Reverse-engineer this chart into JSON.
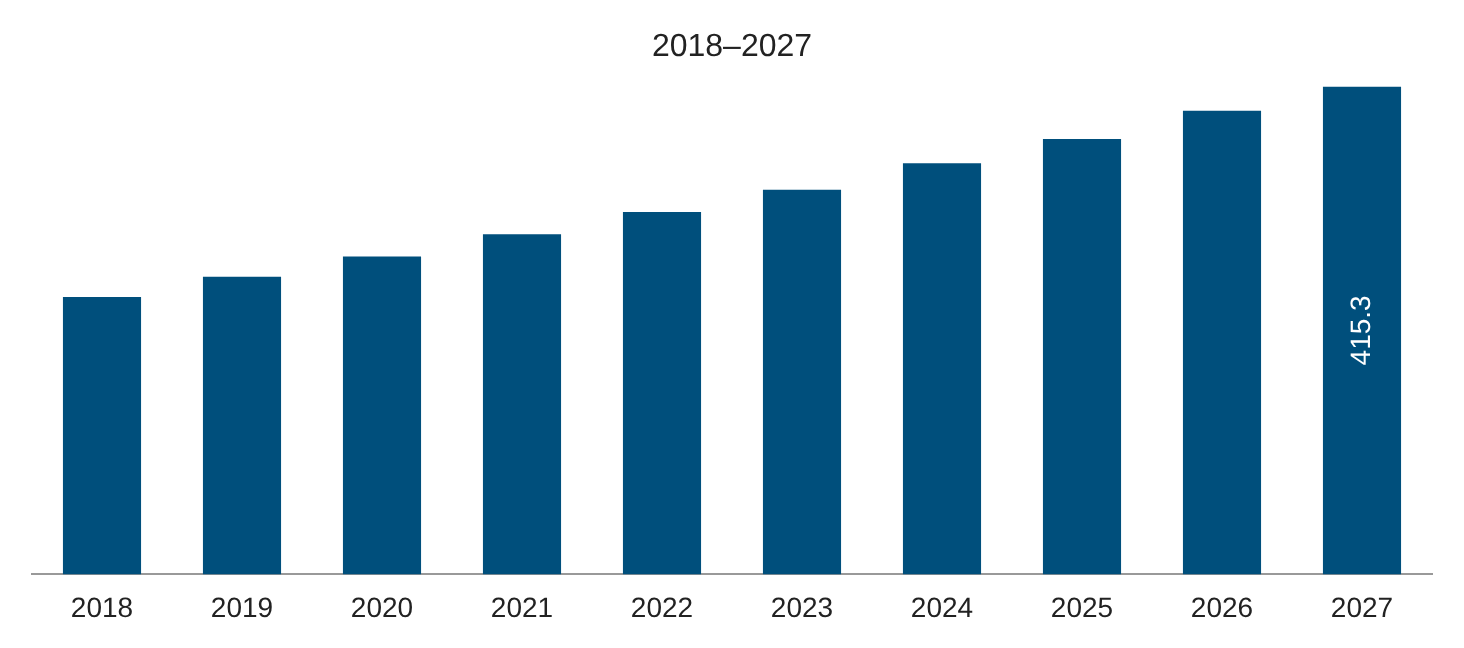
{
  "chart_data": {
    "type": "bar",
    "title": "2018–2027",
    "categories": [
      "2018",
      "2019",
      "2020",
      "2021",
      "2022",
      "2023",
      "2024",
      "2025",
      "2026",
      "2027"
    ],
    "values": [
      236.1,
      253.3,
      270.5,
      289.5,
      308.5,
      327.4,
      349.8,
      370.5,
      394.6,
      415.3
    ],
    "value_labels": [
      null,
      null,
      null,
      null,
      null,
      null,
      null,
      null,
      null,
      "415.3"
    ],
    "color": "#004f7c",
    "ylim": [
      0,
      415.3
    ],
    "tick_labels": "x"
  }
}
